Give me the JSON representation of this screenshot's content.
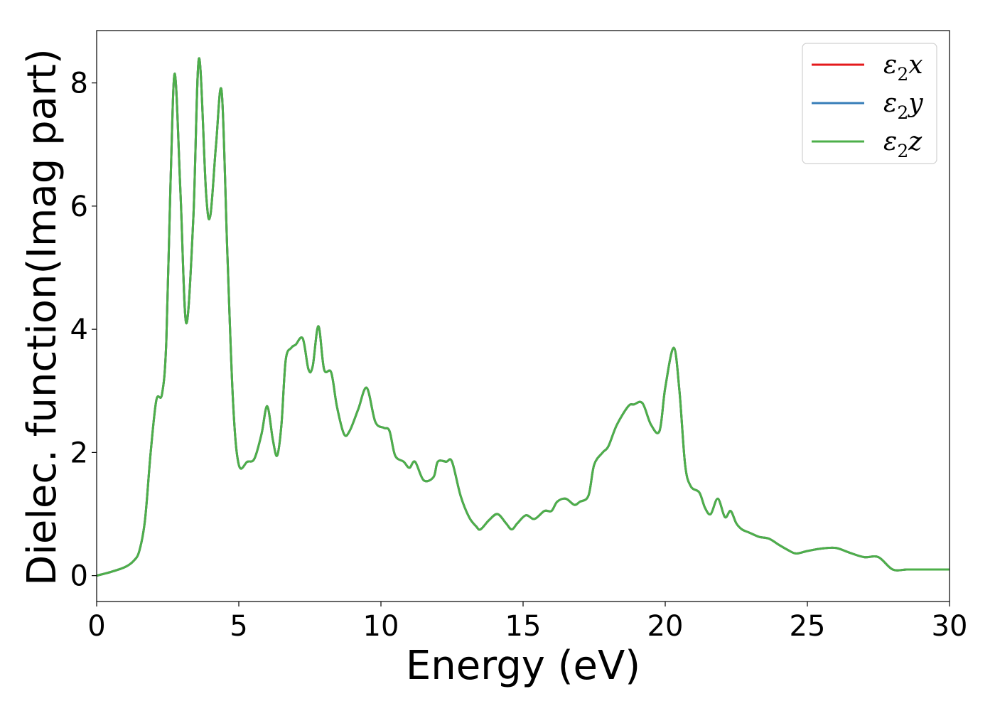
{
  "chart_data": {
    "type": "line",
    "xlabel": "Energy (eV)",
    "ylabel": "Dielec. function(Imag part)",
    "xlim": [
      0,
      30
    ],
    "ylim": [
      -0.42,
      8.85
    ],
    "xticks": [
      0,
      5,
      10,
      15,
      20,
      25,
      30
    ],
    "yticks": [
      0,
      2,
      4,
      6,
      8
    ],
    "grid": false,
    "legend_position": "top-right",
    "legend": [
      {
        "base": "ε",
        "sub": "2",
        "comp": "x",
        "color": "#e41a1c"
      },
      {
        "base": "ε",
        "sub": "2",
        "comp": "y",
        "color": "#377eb8"
      },
      {
        "base": "ε",
        "sub": "2",
        "comp": "z",
        "color": "#4daf4a"
      }
    ],
    "series": [
      {
        "name": "ε2x",
        "color": "#e41a1c"
      },
      {
        "name": "ε2y",
        "color": "#377eb8"
      },
      {
        "name": "ε2z",
        "color": "#4daf4a"
      }
    ],
    "x": [
      0,
      0.5,
      1.0,
      1.3,
      1.5,
      1.7,
      1.9,
      2.1,
      2.3,
      2.45,
      2.6,
      2.75,
      2.95,
      3.15,
      3.4,
      3.6,
      3.85,
      4.0,
      4.2,
      4.4,
      4.6,
      4.8,
      5.0,
      5.3,
      5.55,
      5.8,
      6.0,
      6.2,
      6.35,
      6.5,
      6.65,
      6.85,
      7.0,
      7.25,
      7.45,
      7.6,
      7.8,
      8.0,
      8.25,
      8.45,
      8.7,
      8.9,
      9.2,
      9.5,
      9.8,
      10.1,
      10.3,
      10.5,
      10.8,
      11.0,
      11.2,
      11.5,
      11.85,
      12.0,
      12.3,
      12.5,
      12.8,
      13.1,
      13.35,
      13.5,
      13.8,
      14.1,
      14.4,
      14.6,
      14.8,
      15.1,
      15.4,
      15.75,
      16.0,
      16.2,
      16.5,
      16.8,
      17.0,
      17.3,
      17.5,
      17.8,
      18.0,
      18.3,
      18.7,
      18.9,
      19.2,
      19.5,
      19.8,
      20.0,
      20.3,
      20.5,
      20.7,
      20.9,
      21.2,
      21.4,
      21.6,
      21.85,
      22.1,
      22.3,
      22.5,
      22.7,
      22.95,
      23.3,
      23.65,
      24.0,
      24.3,
      24.6,
      25.0,
      25.5,
      26.0,
      26.5,
      27.0,
      27.5,
      28.0,
      28.5,
      28.9,
      29.2,
      29.5,
      30.0
    ],
    "y": [
      0.0,
      0.06,
      0.14,
      0.24,
      0.4,
      0.9,
      2.0,
      2.85,
      2.95,
      3.8,
      6.4,
      8.15,
      6.2,
      4.1,
      5.8,
      8.4,
      6.2,
      5.85,
      7.0,
      7.85,
      5.2,
      2.8,
      1.8,
      1.85,
      1.9,
      2.3,
      2.75,
      2.2,
      1.95,
      2.45,
      3.5,
      3.7,
      3.75,
      3.85,
      3.35,
      3.4,
      4.05,
      3.35,
      3.3,
      2.75,
      2.3,
      2.35,
      2.7,
      3.05,
      2.5,
      2.4,
      2.35,
      1.95,
      1.85,
      1.75,
      1.85,
      1.55,
      1.6,
      1.85,
      1.85,
      1.85,
      1.3,
      0.95,
      0.8,
      0.75,
      0.9,
      1.0,
      0.85,
      0.75,
      0.85,
      0.98,
      0.92,
      1.05,
      1.05,
      1.2,
      1.25,
      1.15,
      1.2,
      1.3,
      1.8,
      2.0,
      2.1,
      2.45,
      2.75,
      2.78,
      2.8,
      2.45,
      2.35,
      3.05,
      3.7,
      3.0,
      1.8,
      1.45,
      1.35,
      1.1,
      1.0,
      1.25,
      0.95,
      1.05,
      0.85,
      0.75,
      0.7,
      0.63,
      0.6,
      0.5,
      0.42,
      0.36,
      0.4,
      0.44,
      0.45,
      0.37,
      0.3,
      0.3,
      0.1,
      0.1,
      0.1,
      0.1,
      0.1,
      0.1
    ]
  }
}
